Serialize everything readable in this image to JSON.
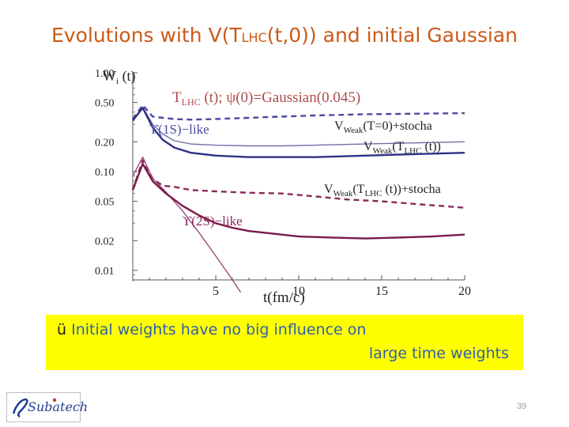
{
  "slide": {
    "title_parts": [
      "Evolutions with V(T",
      "LHC",
      "(t,0)) and initial Gaussian"
    ],
    "note_check": "ü",
    "note_line1": " Initial weights have no big influence on",
    "note_line2": "large time weights",
    "logo_text": "Subatech",
    "slide_number": "39"
  },
  "chart_data": {
    "type": "line",
    "title": "T_LHC (t);  ψ(0)=Gaussian(0.045)",
    "ylabel": "Wi (t)",
    "xlabel": "t(fm/c)",
    "y_scale": "log",
    "xlim": [
      0,
      20
    ],
    "ylim": [
      0.008,
      1.0
    ],
    "x_ticks": [
      5,
      10,
      15,
      20
    ],
    "y_ticks": [
      1.0,
      0.5,
      0.2,
      0.1,
      0.05,
      0.02,
      0.01
    ],
    "y_tick_labels": [
      "1.00",
      "0.50",
      "0.20",
      "0.10",
      "0.05",
      "0.02",
      "0.01"
    ],
    "grid": false,
    "labels": {
      "title_T": "T",
      "title_sub": "LHC",
      "title_rest": " (t);  ψ(0)=Gaussian(0.045)",
      "ylabel_main": "W",
      "ylabel_sub": "i",
      "ylabel_rest": " (t)",
      "upsilon1S": "ϒ(1S)−like",
      "upsilon2S": "ϒ(2S)−like",
      "series1_V": "V",
      "series1_sub": "Weak",
      "series1_rest": "(T=0)+stocha",
      "series2_V": "V",
      "series2_sub": "Weak",
      "series2_rest": "(T",
      "series2_sub2": "LHC",
      "series2_end": " (t))",
      "series3_V": "V",
      "series3_sub": "Weak",
      "series3_rest": "(T",
      "series3_sub2": "LHC",
      "series3_end": " (t))+stocha"
    },
    "series": [
      {
        "name": "1S VWeak(T=0)+stocha",
        "color": "#4a4aa0",
        "dash": true,
        "x": [
          0,
          0.6,
          1.2,
          1.8,
          2.5,
          3.5,
          5,
          7,
          9,
          11,
          14,
          17,
          20
        ],
        "y": [
          0.34,
          0.47,
          0.36,
          0.35,
          0.34,
          0.335,
          0.34,
          0.35,
          0.36,
          0.37,
          0.38,
          0.385,
          0.39
        ]
      },
      {
        "name": "1S VWeak(TLHC(t))",
        "color": "#7070a8",
        "dash": false,
        "x": [
          0,
          0.6,
          1.2,
          1.8,
          2.5,
          3.5,
          5,
          7,
          9,
          11,
          14,
          17,
          20
        ],
        "y": [
          0.32,
          0.45,
          0.3,
          0.24,
          0.205,
          0.19,
          0.185,
          0.182,
          0.182,
          0.185,
          0.19,
          0.195,
          0.2
        ]
      },
      {
        "name": "1S VWeak(TLHC(t))+stocha",
        "color": "#303088",
        "dash": false,
        "x": [
          0,
          0.6,
          1.2,
          1.8,
          2.5,
          3.5,
          5,
          7,
          9,
          11,
          14,
          17,
          20
        ],
        "y": [
          0.33,
          0.44,
          0.28,
          0.21,
          0.175,
          0.155,
          0.145,
          0.14,
          0.14,
          0.14,
          0.145,
          0.15,
          0.155
        ]
      },
      {
        "name": "2S VWeak(T=0)+stocha",
        "color": "#8a2a5a",
        "dash": true,
        "x": [
          0,
          0.6,
          1.2,
          1.8,
          2.5,
          3.5,
          5,
          7,
          9,
          11,
          13,
          15,
          17,
          20
        ],
        "y": [
          0.065,
          0.13,
          0.085,
          0.072,
          0.07,
          0.065,
          0.063,
          0.061,
          0.06,
          0.056,
          0.052,
          0.05,
          0.047,
          0.043
        ]
      },
      {
        "name": "2S VWeak(TLHC(t))",
        "color": "#9a4a7a",
        "dash": false,
        "x": [
          0,
          0.6,
          1.2,
          2,
          3,
          4,
          5,
          5.8,
          6.5
        ],
        "y": [
          0.09,
          0.14,
          0.085,
          0.062,
          0.04,
          0.024,
          0.014,
          0.009,
          0.006
        ]
      },
      {
        "name": "2S VWeak(TLHC(t))+stocha",
        "color": "#7a1a4a",
        "dash": false,
        "x": [
          0,
          0.6,
          1.2,
          2,
          3,
          4,
          5,
          6,
          7,
          8,
          10,
          12,
          14,
          16,
          18,
          20
        ],
        "y": [
          0.065,
          0.12,
          0.08,
          0.06,
          0.045,
          0.036,
          0.03,
          0.027,
          0.025,
          0.024,
          0.022,
          0.0215,
          0.021,
          0.0215,
          0.022,
          0.023
        ]
      }
    ]
  }
}
